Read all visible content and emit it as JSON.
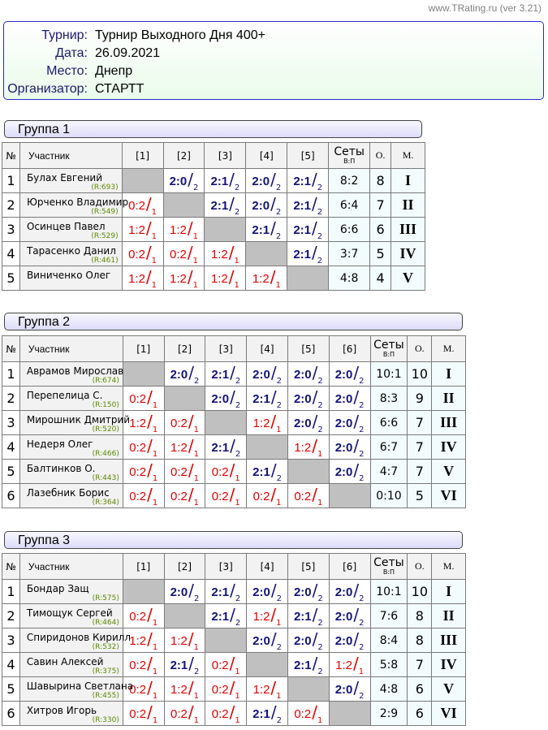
{
  "site": "www.TRating.ru (ver 3.21)",
  "info": [
    {
      "label": "Турнир:",
      "value": "Турнир Выходного Дня 400+"
    },
    {
      "label": "Дата:",
      "value": "26.09.2021"
    },
    {
      "label": "Место:",
      "value": "Днепр"
    },
    {
      "label": "Организатор:",
      "value": "СТАРТТ"
    }
  ],
  "headers": {
    "no": "№",
    "name": "Участник",
    "sets": "Сеты",
    "sets_sub": "В:П",
    "points": "О.",
    "place": "М."
  },
  "colors": {
    "win": "#12127a",
    "loss": "#e00000",
    "rating": "#5a8a00",
    "border": "#2a2ad0"
  },
  "groups": [
    {
      "title": "Группа 1",
      "cols": [
        "[1]",
        "[2]",
        "[3]",
        "[4]",
        "[5]"
      ],
      "rows": [
        {
          "no": "1",
          "name": "Булах Евгений",
          "rating": "(R:693)",
          "results": [
            null,
            [
              "2:0",
              "2"
            ],
            [
              "2:1",
              "2"
            ],
            [
              "2:0",
              "2"
            ],
            [
              "2:1",
              "2"
            ]
          ],
          "sets": "8:2",
          "points": "8",
          "place": "I"
        },
        {
          "no": "2",
          "name": "Юрченко Владимир",
          "rating": "(R:549)",
          "results": [
            [
              "0:2",
              "1"
            ],
            null,
            [
              "2:1",
              "2"
            ],
            [
              "2:0",
              "2"
            ],
            [
              "2:1",
              "2"
            ]
          ],
          "sets": "6:4",
          "points": "7",
          "place": "II"
        },
        {
          "no": "3",
          "name": "Осинцев Павел",
          "rating": "(R:529)",
          "results": [
            [
              "1:2",
              "1"
            ],
            [
              "1:2",
              "1"
            ],
            null,
            [
              "2:1",
              "2"
            ],
            [
              "2:1",
              "2"
            ]
          ],
          "sets": "6:6",
          "points": "6",
          "place": "III"
        },
        {
          "no": "4",
          "name": "Тарасенко Данил",
          "rating": "(R:461)",
          "results": [
            [
              "0:2",
              "1"
            ],
            [
              "0:2",
              "1"
            ],
            [
              "1:2",
              "1"
            ],
            null,
            [
              "2:1",
              "2"
            ]
          ],
          "sets": "3:7",
          "points": "5",
          "place": "IV"
        },
        {
          "no": "5",
          "name": "Виниченко Олег",
          "rating": "",
          "results": [
            [
              "1:2",
              "1"
            ],
            [
              "1:2",
              "1"
            ],
            [
              "1:2",
              "1"
            ],
            [
              "1:2",
              "1"
            ],
            null
          ],
          "sets": "4:8",
          "points": "4",
          "place": "V"
        }
      ]
    },
    {
      "title": "Группа 2",
      "cols": [
        "[1]",
        "[2]",
        "[3]",
        "[4]",
        "[5]",
        "[6]"
      ],
      "rows": [
        {
          "no": "1",
          "name": "Аврамов Мирослав",
          "rating": "(R:674)",
          "results": [
            null,
            [
              "2:0",
              "2"
            ],
            [
              "2:1",
              "2"
            ],
            [
              "2:0",
              "2"
            ],
            [
              "2:0",
              "2"
            ],
            [
              "2:0",
              "2"
            ]
          ],
          "sets": "10:1",
          "points": "10",
          "place": "I"
        },
        {
          "no": "2",
          "name": "Перепелица С.",
          "rating": "(R:150)",
          "results": [
            [
              "0:2",
              "1"
            ],
            null,
            [
              "2:0",
              "2"
            ],
            [
              "2:1",
              "2"
            ],
            [
              "2:0",
              "2"
            ],
            [
              "2:0",
              "2"
            ]
          ],
          "sets": "8:3",
          "points": "9",
          "place": "II"
        },
        {
          "no": "3",
          "name": "Мирошник Дмитрий",
          "rating": "(R:520)",
          "results": [
            [
              "1:2",
              "1"
            ],
            [
              "0:2",
              "1"
            ],
            null,
            [
              "1:2",
              "1"
            ],
            [
              "2:0",
              "2"
            ],
            [
              "2:0",
              "2"
            ]
          ],
          "sets": "6:6",
          "points": "7",
          "place": "III"
        },
        {
          "no": "4",
          "name": "Недеря Олег",
          "rating": "(R:466)",
          "results": [
            [
              "0:2",
              "1"
            ],
            [
              "1:2",
              "1"
            ],
            [
              "2:1",
              "2"
            ],
            null,
            [
              "1:2",
              "1"
            ],
            [
              "2:0",
              "2"
            ]
          ],
          "sets": "6:7",
          "points": "7",
          "place": "IV"
        },
        {
          "no": "5",
          "name": "Балтинков О.",
          "rating": "(R:443)",
          "results": [
            [
              "0:2",
              "1"
            ],
            [
              "0:2",
              "1"
            ],
            [
              "0:2",
              "1"
            ],
            [
              "2:1",
              "2"
            ],
            null,
            [
              "2:0",
              "2"
            ]
          ],
          "sets": "4:7",
          "points": "7",
          "place": "V"
        },
        {
          "no": "6",
          "name": "Лазебник Борис",
          "rating": "(R:364)",
          "results": [
            [
              "0:2",
              "1"
            ],
            [
              "0:2",
              "1"
            ],
            [
              "0:2",
              "1"
            ],
            [
              "0:2",
              "1"
            ],
            [
              "0:2",
              "1"
            ],
            null
          ],
          "sets": "0:10",
          "points": "5",
          "place": "VI"
        }
      ]
    },
    {
      "title": "Группа 3",
      "cols": [
        "[1]",
        "[2]",
        "[3]",
        "[4]",
        "[5]",
        "[6]"
      ],
      "rows": [
        {
          "no": "1",
          "name": "Бондар Защ",
          "rating": "(R:575)",
          "results": [
            null,
            [
              "2:0",
              "2"
            ],
            [
              "2:1",
              "2"
            ],
            [
              "2:0",
              "2"
            ],
            [
              "2:0",
              "2"
            ],
            [
              "2:0",
              "2"
            ]
          ],
          "sets": "10:1",
          "points": "10",
          "place": "I"
        },
        {
          "no": "2",
          "name": "Тимощук Сергей",
          "rating": "(R:464)",
          "results": [
            [
              "0:2",
              "1"
            ],
            null,
            [
              "2:1",
              "2"
            ],
            [
              "1:2",
              "1"
            ],
            [
              "2:1",
              "2"
            ],
            [
              "2:0",
              "2"
            ]
          ],
          "sets": "7:6",
          "points": "8",
          "place": "II"
        },
        {
          "no": "3",
          "name": "Спиридонов Кирилл",
          "rating": "(R:532)",
          "results": [
            [
              "1:2",
              "1"
            ],
            [
              "1:2",
              "1"
            ],
            null,
            [
              "2:0",
              "2"
            ],
            [
              "2:0",
              "2"
            ],
            [
              "2:0",
              "2"
            ]
          ],
          "sets": "8:4",
          "points": "8",
          "place": "III"
        },
        {
          "no": "4",
          "name": "Савин Алексей",
          "rating": "(R:375)",
          "results": [
            [
              "0:2",
              "1"
            ],
            [
              "2:1",
              "2"
            ],
            [
              "0:2",
              "1"
            ],
            null,
            [
              "2:1",
              "2"
            ],
            [
              "1:2",
              "1"
            ]
          ],
          "sets": "5:8",
          "points": "7",
          "place": "IV"
        },
        {
          "no": "5",
          "name": "Шавырина Светлана",
          "rating": "(R:455)",
          "results": [
            [
              "0:2",
              "1"
            ],
            [
              "1:2",
              "1"
            ],
            [
              "0:2",
              "1"
            ],
            [
              "1:2",
              "1"
            ],
            null,
            [
              "2:0",
              "2"
            ]
          ],
          "sets": "4:8",
          "points": "6",
          "place": "V"
        },
        {
          "no": "6",
          "name": "Хитров Игорь",
          "rating": "(R:330)",
          "results": [
            [
              "0:2",
              "1"
            ],
            [
              "0:2",
              "1"
            ],
            [
              "0:2",
              "1"
            ],
            [
              "2:1",
              "2"
            ],
            [
              "0:2",
              "1"
            ],
            null
          ],
          "sets": "2:9",
          "points": "6",
          "place": "VI"
        }
      ]
    }
  ]
}
